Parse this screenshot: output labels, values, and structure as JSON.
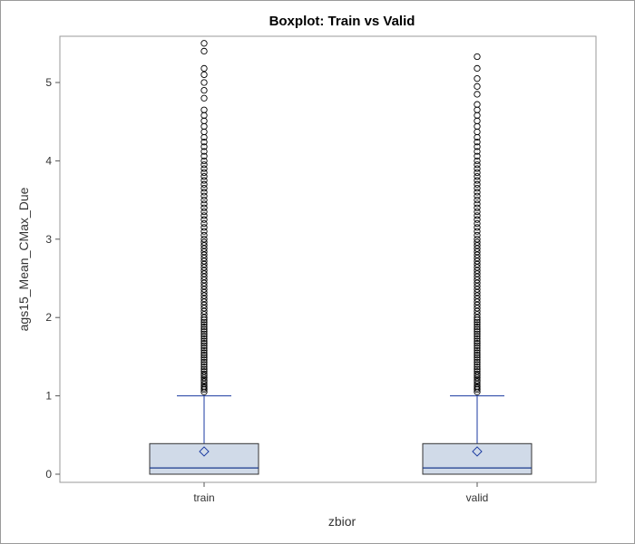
{
  "chart_data": {
    "type": "boxplot",
    "title": "Boxplot: Train vs Valid",
    "xlabel": "zbior",
    "ylabel": "ags15_Mean_CMax_Due",
    "categories": [
      "train",
      "valid"
    ],
    "ylim": [
      -0.1,
      5.6
    ],
    "yticks": [
      0,
      1,
      2,
      3,
      4,
      5
    ],
    "grid": false,
    "legend": "none",
    "boxes": [
      {
        "name": "train",
        "q1": 0.0,
        "median": 0.08,
        "q3": 0.39,
        "mean": 0.29,
        "whisker_low": 0.0,
        "whisker_high": 1.0,
        "outliers": [
          1.05,
          1.08,
          1.1,
          1.12,
          1.15,
          1.18,
          1.2,
          1.23,
          1.26,
          1.28,
          1.31,
          1.34,
          1.37,
          1.4,
          1.43,
          1.46,
          1.49,
          1.52,
          1.55,
          1.58,
          1.61,
          1.64,
          1.67,
          1.7,
          1.73,
          1.76,
          1.79,
          1.82,
          1.85,
          1.88,
          1.91,
          1.94,
          1.97,
          2.0,
          2.04,
          2.08,
          2.12,
          2.16,
          2.2,
          2.24,
          2.28,
          2.32,
          2.36,
          2.4,
          2.44,
          2.48,
          2.52,
          2.56,
          2.6,
          2.64,
          2.68,
          2.72,
          2.76,
          2.8,
          2.84,
          2.88,
          2.92,
          2.96,
          3.0,
          3.05,
          3.1,
          3.15,
          3.2,
          3.25,
          3.3,
          3.35,
          3.4,
          3.45,
          3.5,
          3.55,
          3.6,
          3.65,
          3.7,
          3.75,
          3.8,
          3.85,
          3.9,
          3.95,
          4.0,
          4.06,
          4.12,
          4.18,
          4.24,
          4.3,
          4.37,
          4.44,
          4.51,
          4.58,
          4.65,
          4.8,
          4.9,
          5.0,
          5.1,
          5.18,
          5.4,
          5.5
        ]
      },
      {
        "name": "valid",
        "q1": 0.0,
        "median": 0.08,
        "q3": 0.39,
        "mean": 0.29,
        "whisker_low": 0.0,
        "whisker_high": 1.0,
        "outliers": [
          1.05,
          1.08,
          1.1,
          1.12,
          1.15,
          1.18,
          1.2,
          1.23,
          1.26,
          1.28,
          1.31,
          1.34,
          1.37,
          1.4,
          1.43,
          1.46,
          1.49,
          1.52,
          1.55,
          1.58,
          1.61,
          1.64,
          1.67,
          1.7,
          1.73,
          1.76,
          1.79,
          1.82,
          1.85,
          1.88,
          1.91,
          1.94,
          1.97,
          2.0,
          2.04,
          2.08,
          2.12,
          2.16,
          2.2,
          2.24,
          2.28,
          2.32,
          2.36,
          2.4,
          2.44,
          2.48,
          2.52,
          2.56,
          2.6,
          2.64,
          2.68,
          2.72,
          2.76,
          2.8,
          2.84,
          2.88,
          2.92,
          2.96,
          3.0,
          3.05,
          3.1,
          3.15,
          3.2,
          3.25,
          3.3,
          3.35,
          3.4,
          3.45,
          3.5,
          3.55,
          3.6,
          3.65,
          3.7,
          3.75,
          3.8,
          3.85,
          3.9,
          3.95,
          4.0,
          4.06,
          4.12,
          4.18,
          4.24,
          4.3,
          4.37,
          4.44,
          4.51,
          4.58,
          4.65,
          4.72,
          4.85,
          4.95,
          5.05,
          5.18,
          5.33
        ]
      }
    ],
    "colors": {
      "box_fill": "#d0dae8",
      "box_stroke": "#333333",
      "median": "#1a3a8c",
      "whisker": "#1a3aa0",
      "mean_marker": "#1a3aa0",
      "outlier": "#000000"
    }
  }
}
